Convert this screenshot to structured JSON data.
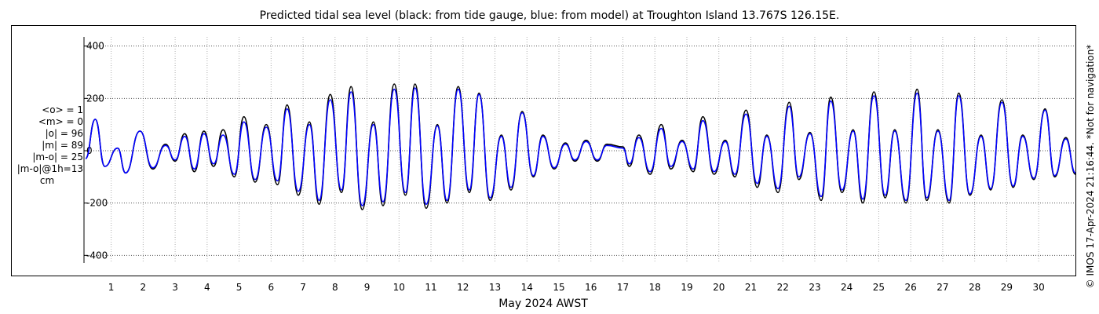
{
  "chart_data": {
    "type": "line",
    "title": "Predicted tidal sea level (black: from tide gauge, blue: from model) at Troughton Island 13.767S 126.15E.",
    "xlabel": "May 2024 AWST",
    "ylabel": "",
    "unit": "cm",
    "xlim": [
      0.15,
      31.15
    ],
    "ylim": [
      -420,
      420
    ],
    "x_ticks": [
      1,
      2,
      3,
      4,
      5,
      6,
      7,
      8,
      9,
      10,
      11,
      12,
      13,
      14,
      15,
      16,
      17,
      18,
      19,
      20,
      21,
      22,
      23,
      24,
      25,
      26,
      27,
      28,
      29,
      30
    ],
    "x_tick_labels": [
      "1",
      "2",
      "3",
      "4",
      "5",
      "6",
      "7",
      "8",
      "9",
      "10",
      "11",
      "12",
      "13",
      "14",
      "15",
      "16",
      "17",
      "18",
      "19",
      "20",
      "21",
      "22",
      "23",
      "24",
      "25",
      "26",
      "27",
      "28",
      "29",
      "30"
    ],
    "y_ticks": [
      400,
      200,
      0,
      -200,
      -400
    ],
    "y_tick_labels": [
      "400",
      "200",
      "0",
      "-200",
      "-400"
    ],
    "grid": true,
    "series": [
      {
        "color": "#000000",
        "values": [
          [
            0.2,
            -30
          ],
          [
            0.5,
            120
          ],
          [
            0.8,
            -60
          ],
          [
            1.2,
            10
          ],
          [
            1.45,
            -85
          ],
          [
            1.9,
            75
          ],
          [
            2.3,
            -70
          ],
          [
            2.7,
            25
          ],
          [
            3.0,
            -40
          ],
          [
            3.3,
            65
          ],
          [
            3.6,
            -80
          ],
          [
            3.9,
            75
          ],
          [
            4.2,
            -60
          ],
          [
            4.5,
            80
          ],
          [
            4.85,
            -100
          ],
          [
            5.15,
            130
          ],
          [
            5.5,
            -120
          ],
          [
            5.85,
            100
          ],
          [
            6.2,
            -130
          ],
          [
            6.5,
            175
          ],
          [
            6.85,
            -170
          ],
          [
            7.2,
            110
          ],
          [
            7.5,
            -205
          ],
          [
            7.85,
            215
          ],
          [
            8.2,
            -160
          ],
          [
            8.5,
            245
          ],
          [
            8.85,
            -225
          ],
          [
            9.2,
            110
          ],
          [
            9.5,
            -210
          ],
          [
            9.85,
            255
          ],
          [
            10.2,
            -170
          ],
          [
            10.5,
            255
          ],
          [
            10.85,
            -220
          ],
          [
            11.2,
            100
          ],
          [
            11.5,
            -200
          ],
          [
            11.85,
            245
          ],
          [
            12.2,
            -160
          ],
          [
            12.5,
            220
          ],
          [
            12.85,
            -190
          ],
          [
            13.2,
            60
          ],
          [
            13.5,
            -150
          ],
          [
            13.85,
            150
          ],
          [
            14.2,
            -100
          ],
          [
            14.5,
            60
          ],
          [
            14.85,
            -70
          ],
          [
            15.2,
            30
          ],
          [
            15.5,
            -40
          ],
          [
            15.85,
            40
          ],
          [
            16.2,
            -40
          ],
          [
            16.5,
            25
          ],
          [
            17.0,
            15
          ],
          [
            17.2,
            -60
          ],
          [
            17.5,
            60
          ],
          [
            17.85,
            -90
          ],
          [
            18.2,
            100
          ],
          [
            18.5,
            -70
          ],
          [
            18.85,
            40
          ],
          [
            19.2,
            -80
          ],
          [
            19.5,
            130
          ],
          [
            19.85,
            -90
          ],
          [
            20.2,
            40
          ],
          [
            20.5,
            -100
          ],
          [
            20.85,
            155
          ],
          [
            21.2,
            -140
          ],
          [
            21.5,
            60
          ],
          [
            21.85,
            -160
          ],
          [
            22.2,
            185
          ],
          [
            22.5,
            -110
          ],
          [
            22.85,
            70
          ],
          [
            23.2,
            -190
          ],
          [
            23.5,
            205
          ],
          [
            23.85,
            -160
          ],
          [
            24.2,
            80
          ],
          [
            24.5,
            -200
          ],
          [
            24.85,
            225
          ],
          [
            25.2,
            -180
          ],
          [
            25.5,
            80
          ],
          [
            25.85,
            -200
          ],
          [
            26.2,
            235
          ],
          [
            26.5,
            -190
          ],
          [
            26.85,
            80
          ],
          [
            27.2,
            -200
          ],
          [
            27.5,
            220
          ],
          [
            27.85,
            -170
          ],
          [
            28.2,
            60
          ],
          [
            28.5,
            -150
          ],
          [
            28.85,
            195
          ],
          [
            29.2,
            -140
          ],
          [
            29.5,
            60
          ],
          [
            29.85,
            -110
          ],
          [
            30.2,
            160
          ],
          [
            30.5,
            -100
          ],
          [
            30.85,
            50
          ],
          [
            31.15,
            -90
          ]
        ]
      },
      {
        "color": "#0000ff",
        "values": [
          [
            0.2,
            -30
          ],
          [
            0.5,
            120
          ],
          [
            0.8,
            -60
          ],
          [
            1.2,
            10
          ],
          [
            1.45,
            -85
          ],
          [
            1.9,
            75
          ],
          [
            2.3,
            -65
          ],
          [
            2.7,
            20
          ],
          [
            3.0,
            -35
          ],
          [
            3.3,
            55
          ],
          [
            3.6,
            -70
          ],
          [
            3.9,
            65
          ],
          [
            4.2,
            -50
          ],
          [
            4.5,
            60
          ],
          [
            4.85,
            -90
          ],
          [
            5.15,
            110
          ],
          [
            5.5,
            -110
          ],
          [
            5.85,
            90
          ],
          [
            6.2,
            -115
          ],
          [
            6.5,
            160
          ],
          [
            6.85,
            -155
          ],
          [
            7.2,
            100
          ],
          [
            7.5,
            -190
          ],
          [
            7.85,
            195
          ],
          [
            8.2,
            -150
          ],
          [
            8.5,
            225
          ],
          [
            8.85,
            -210
          ],
          [
            9.2,
            100
          ],
          [
            9.5,
            -195
          ],
          [
            9.85,
            235
          ],
          [
            10.2,
            -160
          ],
          [
            10.5,
            240
          ],
          [
            10.85,
            -205
          ],
          [
            11.2,
            95
          ],
          [
            11.5,
            -190
          ],
          [
            11.85,
            235
          ],
          [
            12.2,
            -150
          ],
          [
            12.5,
            215
          ],
          [
            12.85,
            -180
          ],
          [
            13.2,
            55
          ],
          [
            13.5,
            -140
          ],
          [
            13.85,
            145
          ],
          [
            14.2,
            -95
          ],
          [
            14.5,
            55
          ],
          [
            14.85,
            -65
          ],
          [
            15.2,
            25
          ],
          [
            15.5,
            -35
          ],
          [
            15.85,
            35
          ],
          [
            16.2,
            -35
          ],
          [
            16.5,
            20
          ],
          [
            17.0,
            10
          ],
          [
            17.2,
            -50
          ],
          [
            17.5,
            50
          ],
          [
            17.85,
            -80
          ],
          [
            18.2,
            85
          ],
          [
            18.5,
            -60
          ],
          [
            18.85,
            35
          ],
          [
            19.2,
            -70
          ],
          [
            19.5,
            115
          ],
          [
            19.85,
            -80
          ],
          [
            20.2,
            35
          ],
          [
            20.5,
            -90
          ],
          [
            20.85,
            140
          ],
          [
            21.2,
            -125
          ],
          [
            21.5,
            55
          ],
          [
            21.85,
            -145
          ],
          [
            22.2,
            170
          ],
          [
            22.5,
            -100
          ],
          [
            22.85,
            65
          ],
          [
            23.2,
            -175
          ],
          [
            23.5,
            190
          ],
          [
            23.85,
            -150
          ],
          [
            24.2,
            75
          ],
          [
            24.5,
            -185
          ],
          [
            24.85,
            210
          ],
          [
            25.2,
            -170
          ],
          [
            25.5,
            75
          ],
          [
            25.85,
            -190
          ],
          [
            26.2,
            220
          ],
          [
            26.5,
            -180
          ],
          [
            26.85,
            75
          ],
          [
            27.2,
            -190
          ],
          [
            27.5,
            210
          ],
          [
            27.85,
            -165
          ],
          [
            28.2,
            55
          ],
          [
            28.5,
            -145
          ],
          [
            28.85,
            185
          ],
          [
            29.2,
            -135
          ],
          [
            29.5,
            55
          ],
          [
            29.85,
            -105
          ],
          [
            30.2,
            155
          ],
          [
            30.5,
            -95
          ],
          [
            30.85,
            45
          ],
          [
            31.15,
            -85
          ]
        ]
      }
    ]
  },
  "stats": {
    "lines": [
      "<o> = 1",
      "<m> = 0",
      "|o| = 96",
      "|m| = 89",
      "|m-o| = 25",
      "|m-o|@1h=13"
    ],
    "unit": "cm"
  },
  "side_note": "© IMOS 17-Apr-2024 21:16:44. *Not for navigation*"
}
